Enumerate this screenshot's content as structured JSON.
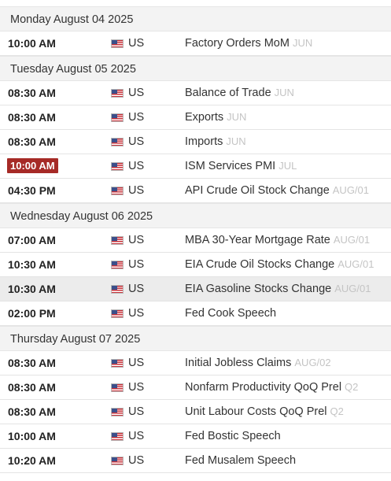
{
  "calendar": {
    "days": [
      {
        "date": "Monday August 04 2025",
        "events": [
          {
            "time": "10:00 AM",
            "country": "US",
            "event": "Factory Orders MoM",
            "reference": "JUN",
            "badge": false,
            "highlight": false
          }
        ]
      },
      {
        "date": "Tuesday August 05 2025",
        "events": [
          {
            "time": "08:30 AM",
            "country": "US",
            "event": "Balance of Trade",
            "reference": "JUN",
            "badge": false,
            "highlight": false
          },
          {
            "time": "08:30 AM",
            "country": "US",
            "event": "Exports",
            "reference": "JUN",
            "badge": false,
            "highlight": false
          },
          {
            "time": "08:30 AM",
            "country": "US",
            "event": "Imports",
            "reference": "JUN",
            "badge": false,
            "highlight": false
          },
          {
            "time": "10:00 AM",
            "country": "US",
            "event": "ISM Services PMI",
            "reference": "JUL",
            "badge": true,
            "highlight": false
          },
          {
            "time": "04:30 PM",
            "country": "US",
            "event": "API Crude Oil Stock Change",
            "reference": "AUG/01",
            "badge": false,
            "highlight": false
          }
        ]
      },
      {
        "date": "Wednesday August 06 2025",
        "events": [
          {
            "time": "07:00 AM",
            "country": "US",
            "event": "MBA 30-Year Mortgage Rate",
            "reference": "AUG/01",
            "badge": false,
            "highlight": false
          },
          {
            "time": "10:30 AM",
            "country": "US",
            "event": "EIA Crude Oil Stocks Change",
            "reference": "AUG/01",
            "badge": false,
            "highlight": false
          },
          {
            "time": "10:30 AM",
            "country": "US",
            "event": "EIA Gasoline Stocks Change",
            "reference": "AUG/01",
            "badge": false,
            "highlight": true
          },
          {
            "time": "02:00 PM",
            "country": "US",
            "event": "Fed Cook Speech",
            "reference": "",
            "badge": false,
            "highlight": false
          }
        ]
      },
      {
        "date": "Thursday August 07 2025",
        "events": [
          {
            "time": "08:30 AM",
            "country": "US",
            "event": "Initial Jobless Claims",
            "reference": "AUG/02",
            "badge": false,
            "highlight": false
          },
          {
            "time": "08:30 AM",
            "country": "US",
            "event": "Nonfarm Productivity QoQ Prel",
            "reference": "Q2",
            "badge": false,
            "highlight": false
          },
          {
            "time": "08:30 AM",
            "country": "US",
            "event": "Unit Labour Costs QoQ Prel",
            "reference": "Q2",
            "badge": false,
            "highlight": false
          },
          {
            "time": "10:00 AM",
            "country": "US",
            "event": "Fed Bostic Speech",
            "reference": "",
            "badge": false,
            "highlight": false
          },
          {
            "time": "10:20 AM",
            "country": "US",
            "event": "Fed Musalem Speech",
            "reference": "",
            "badge": false,
            "highlight": false
          }
        ]
      }
    ]
  },
  "colors": {
    "badge_background": "#a62a26",
    "header_background": "#f3f3f3",
    "reference_text": "#c4c4c4",
    "highlight_row": "#ececec"
  },
  "icons": {
    "country_flag": "us-flag-icon"
  }
}
